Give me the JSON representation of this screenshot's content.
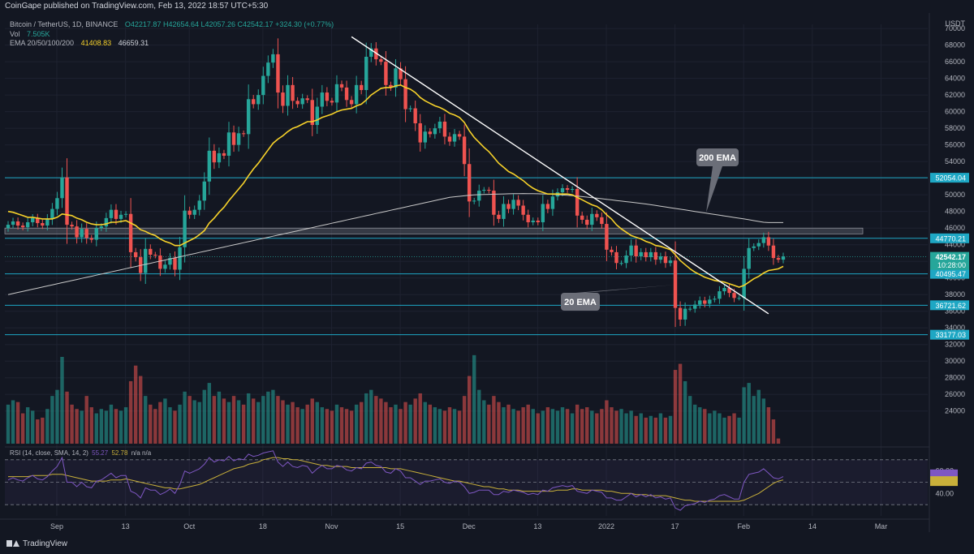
{
  "header": {
    "published": "CoinGape published on TradingView.com, Feb 13, 2022 18:57 UTC+5:30"
  },
  "legend": {
    "symbol": "Bitcoin / TetherUS, 1D, BINANCE",
    "ohlc": "O42217.87 H42654.64 L42057.26 C42542.17 +324.30 (+0.77%)",
    "vol_label": "Vol",
    "vol_value": "7.505K",
    "ema_label": "EMA 20/50/100/200",
    "ema20_value": "41408.83",
    "ema200_value": "46659.31"
  },
  "rsi_legend": {
    "label": "RSI (14, close, SMA, 14, 2)",
    "rsi_value": "55.27",
    "sma_value": "52.78",
    "na": "n/a n/a"
  },
  "footer": {
    "brand": "TradingView"
  },
  "colors": {
    "bg": "#131722",
    "up": "#26a69a",
    "down": "#ef5350",
    "ema20": "#f7d22a",
    "ema200": "#c9c9c9",
    "level": "#1ea7c4",
    "rsi": "#7e57c2",
    "rsi_sma": "#c9b03a"
  },
  "chart_data": {
    "type": "candlestick",
    "symbol": "BTCUSDT",
    "currency": "USDT",
    "timeframe": "1D",
    "price_range": [
      23000,
      70500
    ],
    "price_ticks": [
      24000,
      26000,
      28000,
      30000,
      32000,
      34000,
      36000,
      38000,
      40000,
      42000,
      44000,
      46000,
      48000,
      50000,
      52000,
      54000,
      56000,
      58000,
      60000,
      62000,
      64000,
      66000,
      68000,
      70000
    ],
    "x_tick_labels": [
      "Sep",
      "13",
      "Oct",
      "18",
      "Nov",
      "15",
      "Dec",
      "13",
      "2022",
      "17",
      "Feb",
      "14",
      "Mar",
      "14"
    ],
    "closes": [
      46400,
      46800,
      46300,
      46100,
      46700,
      47200,
      46600,
      46300,
      47100,
      48300,
      49600,
      52100,
      46400,
      46200,
      44900,
      45900,
      44800,
      44600,
      46000,
      46200,
      47200,
      48200,
      47100,
      47600,
      47700,
      43100,
      42500,
      40600,
      43500,
      42800,
      42700,
      41100,
      41600,
      42400,
      41000,
      43700,
      48100,
      47600,
      48200,
      49300,
      51600,
      55300,
      53900,
      55000,
      54700,
      57500,
      56000,
      57400,
      57300,
      61500,
      60900,
      62000,
      64300,
      65900,
      66900,
      62300,
      60700,
      63200,
      61300,
      60900,
      61600,
      61400,
      58400,
      60600,
      62300,
      61300,
      61100,
      63300,
      62900,
      61400,
      60900,
      63200,
      62600,
      66600,
      67600,
      66300,
      66000,
      63200,
      62900,
      65200,
      63900,
      60300,
      60400,
      58600,
      56300,
      57600,
      57300,
      58000,
      58800,
      57000,
      56400,
      57300,
      57000,
      53700,
      49200,
      49300,
      50500,
      50600,
      50500,
      47600,
      47100,
      48900,
      48300,
      49400,
      48700,
      47600,
      46700,
      46900,
      46700,
      48900,
      48300,
      49800,
      50300,
      50800,
      50600,
      50700,
      47500,
      47000,
      46400,
      47700,
      47300,
      46500,
      43400,
      43100,
      41800,
      41800,
      42700,
      43900,
      42600,
      43100,
      42500,
      43100,
      42200,
      42600,
      41800,
      42100,
      36400,
      35000,
      36300,
      36300,
      36800,
      37300,
      36900,
      37400,
      37500,
      38400,
      38800,
      38200,
      37600,
      37600,
      41100,
      43600,
      43800,
      44200,
      44900,
      43900,
      42400,
      42200,
      42600
    ],
    "ema20": [
      48000,
      47900,
      47700,
      47500,
      47300,
      47300,
      47200,
      47100,
      47100,
      47100,
      47300,
      47700,
      47600,
      47500,
      47200,
      47000,
      46700,
      46500,
      46400,
      46400,
      46500,
      46700,
      46700,
      46800,
      46900,
      46600,
      46300,
      45800,
      45600,
      45300,
      45100,
      44700,
      44400,
      44200,
      43900,
      43900,
      44200,
      44500,
      44800,
      45200,
      45700,
      46600,
      47200,
      47900,
      48500,
      49300,
      50000,
      50700,
      51400,
      52300,
      53100,
      53800,
      54600,
      55400,
      56200,
      56700,
      57100,
      57600,
      58000,
      58200,
      58500,
      58800,
      58800,
      59000,
      59300,
      59500,
      59700,
      60000,
      60200,
      60300,
      60400,
      60700,
      60900,
      61400,
      62000,
      62400,
      62800,
      62900,
      62900,
      63100,
      63200,
      62900,
      62700,
      62300,
      61700,
      61300,
      61000,
      60700,
      60500,
      60200,
      59800,
      59600,
      59300,
      58700,
      57700,
      56900,
      56300,
      55700,
      55200,
      54500,
      53800,
      53300,
      52800,
      52500,
      52100,
      51700,
      51200,
      50800,
      50500,
      50300,
      50100,
      50100,
      50100,
      50100,
      50100,
      50000,
      49700,
      49400,
      49100,
      48800,
      48600,
      48200,
      47600,
      47100,
      46400,
      45900,
      45500,
      45100,
      44900,
      44700,
      44400,
      44200,
      43900,
      43800,
      43600,
      43400,
      42800,
      42100,
      41600,
      41100,
      40700,
      40400,
      40100,
      39900,
      39700,
      39600,
      39500,
      39300,
      39100,
      38900,
      39100,
      39500,
      39900,
      40200,
      40600,
      40900,
      41000,
      41100,
      41400
    ],
    "ema200": [
      38000,
      38130,
      38260,
      38390,
      38520,
      38650,
      38780,
      38910,
      39040,
      39170,
      39300,
      39430,
      39560,
      39690,
      39820,
      39950,
      40080,
      40210,
      40340,
      40470,
      40600,
      40730,
      40860,
      40990,
      41120,
      41250,
      41380,
      41510,
      41640,
      41770,
      41900,
      42030,
      42160,
      42290,
      42420,
      42550,
      42680,
      42810,
      42940,
      43070,
      43200,
      43330,
      43460,
      43590,
      43720,
      43850,
      43980,
      44110,
      44240,
      44370,
      44500,
      44630,
      44760,
      44890,
      45020,
      45150,
      45280,
      45410,
      45540,
      45670,
      45800,
      45930,
      46060,
      46190,
      46320,
      46450,
      46580,
      46710,
      46840,
      46970,
      47100,
      47230,
      47360,
      47490,
      47620,
      47750,
      47880,
      48010,
      48140,
      48270,
      48400,
      48530,
      48660,
      48790,
      48920,
      49050,
      49180,
      49310,
      49440,
      49570,
      49700,
      49760,
      49820,
      49880,
      49940,
      50000,
      50020,
      50040,
      50060,
      50080,
      50100,
      50110,
      50120,
      50130,
      50140,
      50150,
      50140,
      50130,
      50120,
      50110,
      50100,
      50060,
      50020,
      49980,
      49940,
      49900,
      49840,
      49780,
      49720,
      49660,
      49600,
      49530,
      49460,
      49390,
      49320,
      49250,
      49180,
      49110,
      49040,
      48970,
      48900,
      48810,
      48720,
      48630,
      48540,
      48450,
      48360,
      48270,
      48180,
      48090,
      48000,
      47910,
      47820,
      47730,
      47640,
      47550,
      47460,
      47370,
      47280,
      47190,
      47100,
      47000,
      46900,
      46800,
      46700,
      46660,
      46660,
      46660,
      46660
    ],
    "horizontal_levels": [
      {
        "price": 52054.04,
        "label": "52054.04"
      },
      {
        "price": 44770.21,
        "label": "44770.21"
      },
      {
        "price": 40495.47,
        "label": "40495.47"
      },
      {
        "price": 36721.62,
        "label": "36721.62"
      },
      {
        "price": 33177.03,
        "label": "33177.03"
      }
    ],
    "last_price": {
      "price": 42542.17,
      "label": "42542.17",
      "countdown": "10:28:00"
    },
    "resistance_zone": [
      45300,
      46000
    ],
    "trendline": {
      "from": {
        "index": 70,
        "price": 69000
      },
      "to": {
        "index": 155,
        "price": 35700
      }
    },
    "annotations": [
      {
        "text": "200 EMA",
        "anchor_index": 141,
        "anchor_price": 48000
      },
      {
        "text": "20 EMA",
        "anchor_index": 134,
        "anchor_price": 41500
      }
    ],
    "volume": [
      0.45,
      0.5,
      0.48,
      0.35,
      0.42,
      0.38,
      0.28,
      0.3,
      0.4,
      0.55,
      0.62,
      1.0,
      0.6,
      0.45,
      0.4,
      0.38,
      0.55,
      0.42,
      0.35,
      0.4,
      0.38,
      0.45,
      0.4,
      0.38,
      0.42,
      0.72,
      0.9,
      0.78,
      0.55,
      0.45,
      0.4,
      0.48,
      0.52,
      0.42,
      0.38,
      0.45,
      0.6,
      0.55,
      0.5,
      0.48,
      0.62,
      0.7,
      0.55,
      0.6,
      0.52,
      0.48,
      0.55,
      0.5,
      0.45,
      0.58,
      0.52,
      0.48,
      0.55,
      0.6,
      0.62,
      0.55,
      0.5,
      0.45,
      0.48,
      0.42,
      0.4,
      0.45,
      0.52,
      0.48,
      0.42,
      0.4,
      0.38,
      0.45,
      0.42,
      0.4,
      0.38,
      0.45,
      0.48,
      0.58,
      0.62,
      0.55,
      0.52,
      0.48,
      0.42,
      0.45,
      0.4,
      0.48,
      0.45,
      0.52,
      0.58,
      0.48,
      0.45,
      0.42,
      0.4,
      0.38,
      0.42,
      0.4,
      0.38,
      0.55,
      0.78,
      1.02,
      0.62,
      0.5,
      0.45,
      0.55,
      0.48,
      0.42,
      0.45,
      0.4,
      0.38,
      0.42,
      0.45,
      0.4,
      0.35,
      0.38,
      0.42,
      0.4,
      0.38,
      0.42,
      0.4,
      0.35,
      0.45,
      0.4,
      0.42,
      0.38,
      0.35,
      0.4,
      0.5,
      0.42,
      0.38,
      0.4,
      0.35,
      0.38,
      0.32,
      0.35,
      0.3,
      0.32,
      0.3,
      0.35,
      0.3,
      0.32,
      0.85,
      0.92,
      0.72,
      0.55,
      0.45,
      0.42,
      0.4,
      0.35,
      0.38,
      0.35,
      0.3,
      0.32,
      0.35,
      0.3,
      0.65,
      0.7,
      0.55,
      0.62,
      0.52,
      0.42,
      0.28,
      0.06
    ],
    "rsi": [
      52,
      54,
      52,
      51,
      54,
      56,
      53,
      52,
      55,
      60,
      64,
      72,
      50,
      50,
      46,
      50,
      46,
      45,
      51,
      52,
      55,
      58,
      54,
      56,
      56,
      42,
      40,
      36,
      45,
      43,
      43,
      39,
      41,
      44,
      40,
      48,
      60,
      58,
      60,
      62,
      66,
      72,
      68,
      70,
      69,
      73,
      69,
      71,
      70,
      75,
      73,
      74,
      76,
      77,
      78,
      68,
      64,
      68,
      64,
      63,
      65,
      64,
      58,
      62,
      65,
      62,
      62,
      65,
      64,
      61,
      60,
      63,
      62,
      67,
      68,
      65,
      64,
      59,
      58,
      62,
      60,
      54,
      54,
      51,
      48,
      51,
      51,
      52,
      53,
      50,
      49,
      51,
      50,
      46,
      40,
      41,
      43,
      43,
      43,
      39,
      39,
      42,
      41,
      43,
      42,
      41,
      39,
      40,
      39,
      43,
      42,
      45,
      46,
      47,
      46,
      47,
      42,
      41,
      40,
      43,
      42,
      41,
      36,
      36,
      34,
      34,
      37,
      40,
      37,
      39,
      37,
      39,
      36,
      37,
      35,
      36,
      27,
      25,
      29,
      30,
      31,
      33,
      32,
      34,
      35,
      38,
      39,
      37,
      35,
      35,
      50,
      57,
      58,
      59,
      62,
      58,
      54,
      53,
      55
    ],
    "rsi_sma": [
      55,
      55,
      55,
      55,
      55,
      56,
      56,
      56,
      56,
      57,
      57,
      57,
      56,
      55,
      54,
      53,
      52,
      51,
      51,
      51,
      51,
      52,
      52,
      52,
      53,
      52,
      51,
      50,
      49,
      48,
      47,
      46,
      45,
      45,
      44,
      44,
      45,
      46,
      47,
      48,
      50,
      52,
      54,
      56,
      58,
      60,
      62,
      63,
      64,
      66,
      67,
      68,
      70,
      71,
      72,
      72,
      71,
      71,
      70,
      70,
      69,
      68,
      67,
      66,
      65,
      65,
      64,
      64,
      64,
      64,
      63,
      63,
      63,
      63,
      63,
      63,
      63,
      63,
      62,
      62,
      62,
      61,
      60,
      59,
      58,
      57,
      56,
      55,
      54,
      53,
      52,
      51,
      51,
      50,
      49,
      48,
      47,
      46,
      46,
      45,
      44,
      44,
      43,
      43,
      43,
      42,
      42,
      42,
      42,
      42,
      42,
      42,
      43,
      43,
      43,
      44,
      44,
      43,
      43,
      43,
      43,
      43,
      42,
      42,
      41,
      40,
      40,
      40,
      39,
      39,
      39,
      38,
      38,
      38,
      38,
      37,
      36,
      35,
      34,
      34,
      33,
      33,
      33,
      33,
      33,
      33,
      33,
      33,
      33,
      33,
      34,
      36,
      38,
      40,
      43,
      46,
      49,
      51,
      52
    ],
    "rsi_ticks": [
      40,
      60
    ],
    "rsi_bands": [
      30,
      50,
      70
    ]
  }
}
